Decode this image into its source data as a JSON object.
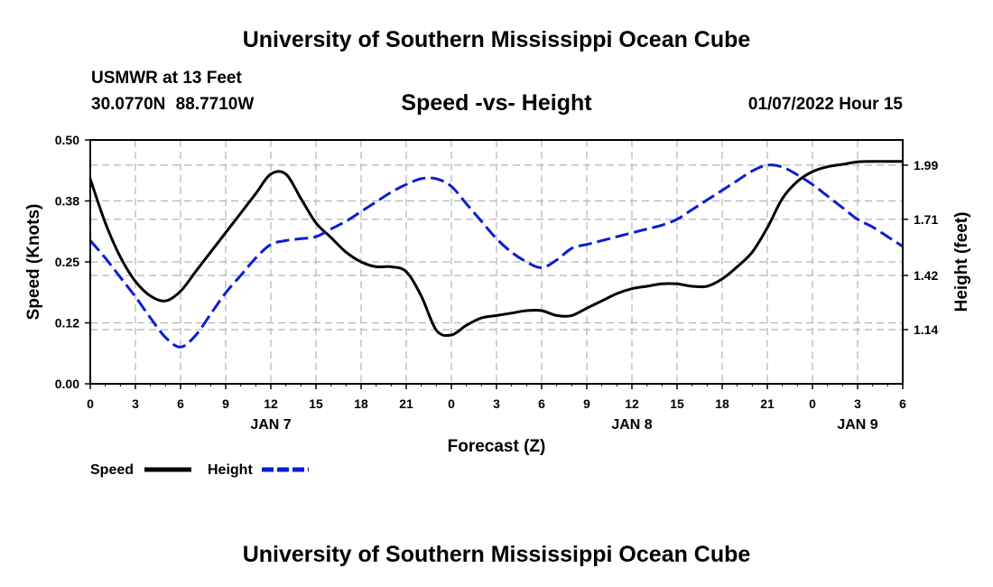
{
  "header": {
    "title": "University of Southern Mississippi Ocean Cube",
    "station": "USMWR at 13 Feet",
    "coords": "30.0770N  88.7710W",
    "subtitle": "Speed -vs- Height",
    "datestamp": "01/07/2022 Hour 15"
  },
  "footer": {
    "title": "University of Southern Mississippi Ocean Cube"
  },
  "chart_data": {
    "type": "line",
    "title": "Speed -vs- Height",
    "xlabel": "Forecast (Z)",
    "ylabel_left": "Speed (Knots)",
    "ylabel_right": "Height (feet)",
    "x_ticks": [
      "0",
      "3",
      "6",
      "9",
      "12",
      "15",
      "18",
      "21",
      "0",
      "3",
      "6",
      "9",
      "12",
      "15",
      "18",
      "21",
      "0",
      "3",
      "6"
    ],
    "x_range": [
      0,
      54
    ],
    "day_labels": [
      {
        "label": "JAN 7",
        "x": 12
      },
      {
        "label": "JAN 8",
        "x": 36
      },
      {
        "label": "JAN 9",
        "x": 51
      }
    ],
    "y_left": {
      "range": [
        0,
        0.5
      ],
      "ticks": [
        "0.00",
        "0.12",
        "0.25",
        "0.38",
        "0.50"
      ],
      "tick_values": [
        0,
        0.125,
        0.25,
        0.375,
        0.5
      ]
    },
    "y_right": {
      "range": [
        0.86,
        2.12
      ],
      "ticks": [
        "1.14",
        "1.42",
        "1.71",
        "1.99"
      ],
      "tick_values": [
        1.14,
        1.42,
        1.71,
        1.99
      ]
    },
    "grid": true,
    "legend": [
      {
        "label": "Speed",
        "color": "#000000",
        "style": "solid"
      },
      {
        "label": "Height",
        "color": "#0b1ed0",
        "style": "dashed"
      }
    ],
    "series": [
      {
        "name": "Speed",
        "axis": "left",
        "color": "#000000",
        "x": [
          0,
          1,
          2,
          3,
          4,
          5,
          6,
          7,
          8,
          9,
          10,
          11,
          12,
          13,
          14,
          15,
          16,
          17,
          18,
          19,
          20,
          21,
          22,
          23,
          24,
          25,
          26,
          27,
          28,
          29,
          30,
          31,
          32,
          33,
          34,
          35,
          36,
          37,
          38,
          39,
          40,
          41,
          42,
          43,
          44,
          45,
          46,
          47,
          48,
          49,
          50,
          51,
          52,
          53,
          54
        ],
        "values": [
          0.42,
          0.33,
          0.26,
          0.21,
          0.18,
          0.17,
          0.19,
          0.23,
          0.27,
          0.31,
          0.35,
          0.39,
          0.43,
          0.43,
          0.38,
          0.33,
          0.3,
          0.27,
          0.25,
          0.24,
          0.24,
          0.23,
          0.18,
          0.11,
          0.1,
          0.12,
          0.135,
          0.14,
          0.145,
          0.15,
          0.15,
          0.14,
          0.14,
          0.155,
          0.17,
          0.185,
          0.195,
          0.2,
          0.205,
          0.205,
          0.2,
          0.2,
          0.215,
          0.24,
          0.27,
          0.32,
          0.38,
          0.415,
          0.435,
          0.445,
          0.45,
          0.455,
          0.456,
          0.456,
          0.456
        ]
      },
      {
        "name": "Height",
        "axis": "right",
        "color": "#0b1ed0",
        "x": [
          0,
          1,
          2,
          3,
          4,
          5,
          6,
          7,
          8,
          9,
          10,
          11,
          12,
          13,
          14,
          15,
          16,
          17,
          18,
          19,
          20,
          21,
          22,
          23,
          24,
          25,
          26,
          27,
          28,
          29,
          30,
          31,
          32,
          33,
          34,
          35,
          36,
          37,
          38,
          39,
          40,
          41,
          42,
          43,
          44,
          45,
          46,
          47,
          48,
          49,
          50,
          51,
          52,
          53,
          54
        ],
        "values": [
          1.6,
          1.51,
          1.41,
          1.31,
          1.2,
          1.1,
          1.05,
          1.11,
          1.22,
          1.33,
          1.42,
          1.51,
          1.58,
          1.6,
          1.61,
          1.62,
          1.66,
          1.7,
          1.75,
          1.8,
          1.85,
          1.89,
          1.92,
          1.92,
          1.88,
          1.79,
          1.7,
          1.61,
          1.54,
          1.49,
          1.46,
          1.5,
          1.56,
          1.58,
          1.6,
          1.62,
          1.64,
          1.66,
          1.68,
          1.71,
          1.76,
          1.81,
          1.86,
          1.91,
          1.96,
          1.99,
          1.98,
          1.94,
          1.89,
          1.83,
          1.77,
          1.71,
          1.67,
          1.62,
          1.57
        ]
      }
    ]
  }
}
